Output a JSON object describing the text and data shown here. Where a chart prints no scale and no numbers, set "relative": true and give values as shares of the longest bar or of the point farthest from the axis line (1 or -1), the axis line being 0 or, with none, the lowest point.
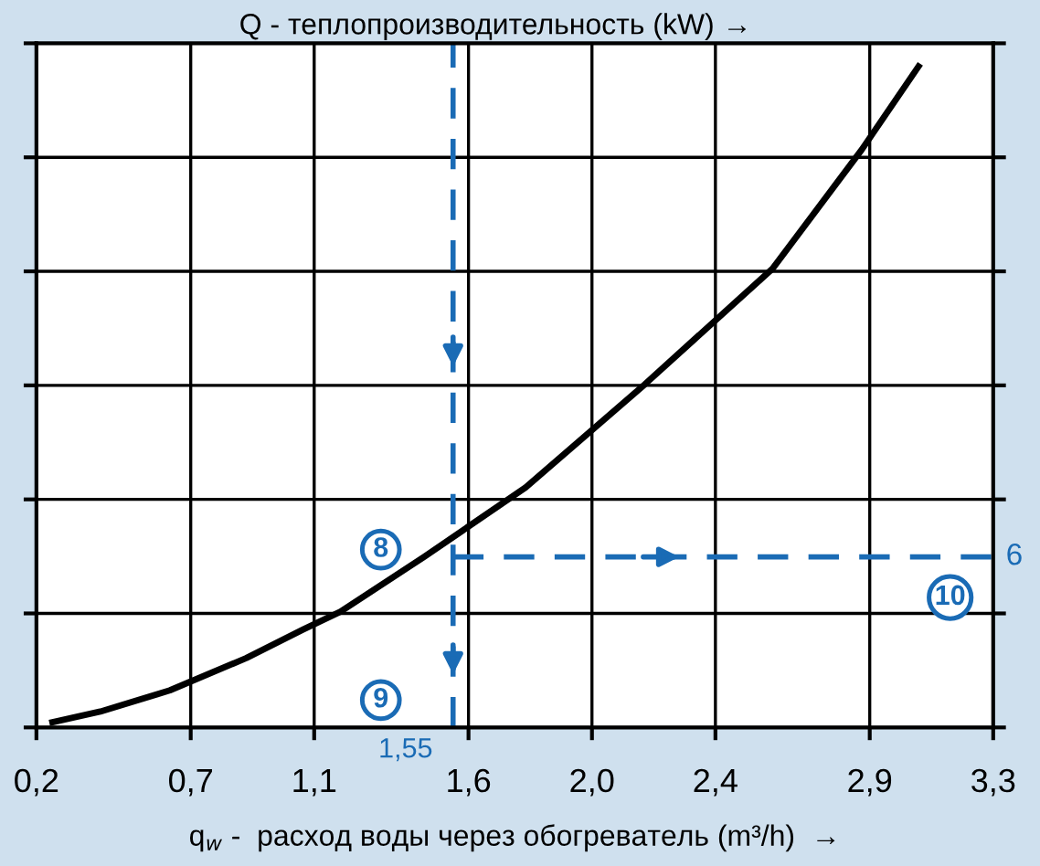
{
  "chart_data": {
    "type": "line",
    "relative": true,
    "ylabel": "Q - теплопроизводительность (kW) →",
    "xlabel": "q$_{w}$ -  расход воды через обогреватель (m³/h)  →",
    "x": [
      0.252,
      0.407,
      0.632,
      0.88,
      1.064,
      1.185,
      1.456,
      1.785,
      2.171,
      2.585,
      2.874,
      3.058
    ],
    "series": [
      {
        "color": "#000000",
        "values": [
          0.008,
          0.024,
          0.056,
          0.105,
          0.148,
          0.175,
          0.258,
          0.363,
          0.519,
          0.694,
          0.874,
          1
        ]
      }
    ],
    "xlim": [
      0.2,
      3.3
    ],
    "xticks": [
      {
        "value": 0.2,
        "label": "0,2"
      },
      {
        "value": 0.7,
        "label": "0,7"
      },
      {
        "value": 1.1,
        "label": "1,1"
      },
      {
        "value": 1.6,
        "label": "1,6"
      },
      {
        "value": 2.0,
        "label": "2,0"
      },
      {
        "value": 2.4,
        "label": "2,4"
      },
      {
        "value": 2.9,
        "label": "2,9"
      },
      {
        "value": 3.3,
        "label": "3,3"
      }
    ],
    "grid": true,
    "marker": "none",
    "line_style": "solid",
    "ref_lines": [
      {
        "axis": "x",
        "value": 1.55,
        "label": "1,55",
        "color": "#1a6bb5",
        "line_style": "dashed"
      },
      {
        "axis": "y",
        "value": 0.258,
        "color": "#1a6bb5",
        "line_style": "dashed"
      }
    ],
    "annotations": [
      "8",
      "9",
      "10",
      "6"
    ]
  }
}
